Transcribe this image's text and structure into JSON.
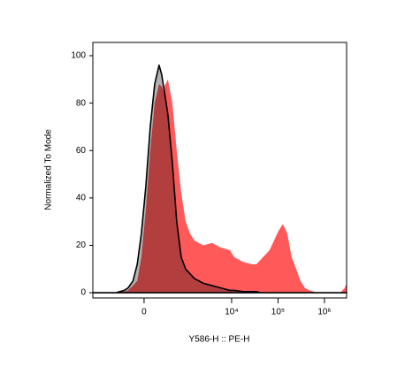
{
  "chart_data": {
    "type": "histogram-overlay",
    "x_label": "Y586-H :: PE-H",
    "y_label": "Normalized To Mode",
    "xscale": "biexponential",
    "x": [
      -1640,
      -500,
      -300,
      -230,
      -150,
      -90,
      -35,
      23,
      81,
      143,
      212,
      258,
      292,
      309,
      385,
      496,
      631,
      801,
      1006,
      1259,
      1573,
      2452,
      3800,
      5900,
      9150,
      11400,
      17700,
      27300,
      34000,
      42400,
      65800,
      102000,
      127000,
      158000,
      197000,
      246000,
      306000,
      381000,
      473000,
      733000,
      2190000,
      2730000,
      3000000
    ],
    "series": [
      {
        "color": "#ff0000",
        "values": [
          0,
          0,
          0.5,
          1,
          3,
          5,
          15,
          35,
          60,
          80,
          88,
          87,
          85,
          87,
          90,
          80,
          60,
          42,
          30,
          25,
          22,
          20,
          21,
          19,
          18,
          15,
          13,
          12,
          12,
          14,
          18,
          26,
          29,
          25,
          15,
          10,
          5,
          2,
          1,
          0,
          0,
          2,
          4
        ]
      },
      {
        "color": "#000000",
        "values": [
          0,
          0,
          1,
          2,
          5,
          12,
          25,
          45,
          70,
          88,
          96,
          92,
          87,
          85,
          75,
          55,
          30,
          15,
          10,
          8,
          6,
          4,
          3,
          2,
          1,
          1,
          0.5,
          0.5,
          0.5,
          0,
          0,
          0,
          0,
          0,
          0,
          0,
          0,
          0,
          0,
          0,
          0,
          0,
          0
        ]
      }
    ],
    "xlim": [
      -1640,
      3000000
    ],
    "ylim": [
      -2.2,
      105.6
    ],
    "xticks": [
      0,
      {
        "value": 10000,
        "label": "10⁴"
      },
      {
        "value": 100000,
        "label": "10⁵"
      },
      {
        "value": 1000000,
        "label": "10⁶"
      }
    ],
    "yticks": [
      0,
      20,
      40,
      60,
      80,
      100
    ]
  }
}
